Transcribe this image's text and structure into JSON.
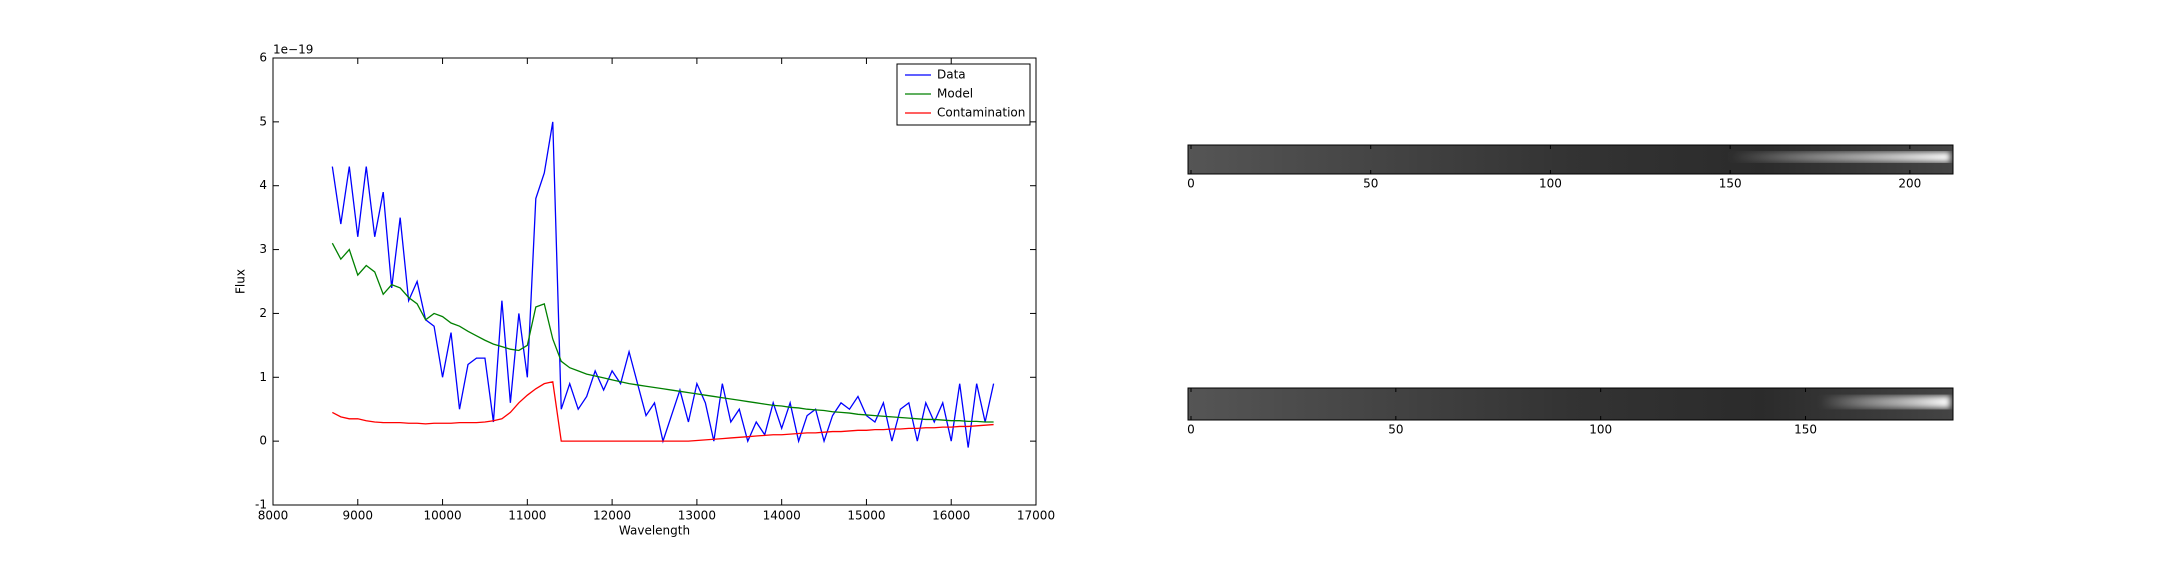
{
  "chart_data": {
    "type": "line",
    "xlabel": "Wavelength",
    "ylabel": "Flux",
    "y_offset_label": "1e−19",
    "x": [
      8700,
      8800,
      8900,
      9000,
      9100,
      9200,
      9300,
      9400,
      9500,
      9600,
      9700,
      9800,
      9900,
      10000,
      10100,
      10200,
      10300,
      10400,
      10500,
      10600,
      10700,
      10800,
      10900,
      11000,
      11100,
      11200,
      11300,
      11400,
      11500,
      11600,
      11700,
      11800,
      11900,
      12000,
      12100,
      12200,
      12300,
      12400,
      12500,
      12600,
      12700,
      12800,
      12900,
      13000,
      13100,
      13200,
      13300,
      13400,
      13500,
      13600,
      13700,
      13800,
      13900,
      14000,
      14100,
      14200,
      14300,
      14400,
      14500,
      14600,
      14700,
      14800,
      14900,
      15000,
      15100,
      15200,
      15300,
      15400,
      15500,
      15600,
      15700,
      15800,
      15900,
      16000,
      16100,
      16200,
      16300,
      16400,
      16500
    ],
    "series": [
      {
        "name": "Data",
        "color": "#0000ff",
        "values": [
          4.3,
          3.4,
          4.3,
          3.2,
          4.3,
          3.2,
          3.9,
          2.4,
          3.5,
          2.2,
          2.5,
          1.9,
          1.8,
          1.0,
          1.7,
          0.5,
          1.2,
          1.3,
          1.3,
          0.3,
          2.2,
          0.6,
          2.0,
          1.0,
          3.8,
          4.2,
          5.0,
          0.5,
          0.9,
          0.5,
          0.7,
          1.1,
          0.8,
          1.1,
          0.9,
          1.4,
          0.9,
          0.4,
          0.6,
          0.0,
          0.4,
          0.8,
          0.3,
          0.9,
          0.6,
          0.0,
          0.9,
          0.3,
          0.5,
          0.0,
          0.3,
          0.1,
          0.6,
          0.2,
          0.6,
          0.0,
          0.4,
          0.5,
          0.0,
          0.4,
          0.6,
          0.5,
          0.7,
          0.4,
          0.3,
          0.6,
          0.0,
          0.5,
          0.6,
          0.0,
          0.6,
          0.3,
          0.6,
          0.0,
          0.9,
          -0.1,
          0.9,
          0.3,
          0.9
        ]
      },
      {
        "name": "Model",
        "color": "#008000",
        "values": [
          3.1,
          2.85,
          3.0,
          2.6,
          2.75,
          2.65,
          2.3,
          2.45,
          2.4,
          2.25,
          2.15,
          1.9,
          2.0,
          1.95,
          1.85,
          1.8,
          1.72,
          1.65,
          1.58,
          1.52,
          1.48,
          1.44,
          1.42,
          1.5,
          2.1,
          2.15,
          1.6,
          1.25,
          1.15,
          1.1,
          1.05,
          1.02,
          0.99,
          0.96,
          0.93,
          0.9,
          0.88,
          0.86,
          0.84,
          0.82,
          0.8,
          0.78,
          0.76,
          0.74,
          0.72,
          0.7,
          0.68,
          0.66,
          0.64,
          0.62,
          0.6,
          0.58,
          0.56,
          0.55,
          0.53,
          0.52,
          0.5,
          0.49,
          0.48,
          0.46,
          0.45,
          0.44,
          0.42,
          0.41,
          0.4,
          0.39,
          0.38,
          0.37,
          0.36,
          0.35,
          0.34,
          0.34,
          0.33,
          0.32,
          0.32,
          0.31,
          0.31,
          0.3,
          0.3
        ]
      },
      {
        "name": "Contamination",
        "color": "#ff0000",
        "values": [
          0.45,
          0.38,
          0.35,
          0.35,
          0.32,
          0.3,
          0.29,
          0.29,
          0.29,
          0.28,
          0.28,
          0.27,
          0.28,
          0.28,
          0.28,
          0.29,
          0.29,
          0.29,
          0.3,
          0.32,
          0.35,
          0.45,
          0.6,
          0.72,
          0.82,
          0.9,
          0.93,
          0,
          0,
          0,
          0,
          0,
          0,
          0,
          0,
          0,
          0,
          0,
          0,
          0,
          0,
          0,
          0,
          0.01,
          0.02,
          0.03,
          0.04,
          0.05,
          0.06,
          0.07,
          0.08,
          0.09,
          0.1,
          0.1,
          0.11,
          0.12,
          0.13,
          0.13,
          0.14,
          0.15,
          0.15,
          0.16,
          0.17,
          0.17,
          0.18,
          0.18,
          0.19,
          0.19,
          0.2,
          0.2,
          0.21,
          0.21,
          0.22,
          0.22,
          0.23,
          0.23,
          0.24,
          0.25,
          0.26
        ]
      }
    ],
    "xlim": [
      8000,
      17000
    ],
    "xticks": [
      8000,
      9000,
      10000,
      11000,
      12000,
      13000,
      14000,
      15000,
      16000,
      17000
    ],
    "ylim": [
      -1,
      6
    ],
    "yticks": [
      -1,
      0,
      1,
      2,
      3,
      4,
      5,
      6
    ],
    "grid": false,
    "legend": "upper right"
  },
  "images": [
    {
      "xlim": [
        0,
        212
      ],
      "xticks": [
        0,
        50,
        100,
        150,
        200
      ]
    },
    {
      "xlim": [
        0,
        186
      ],
      "xticks": [
        0,
        50,
        100,
        150
      ]
    }
  ]
}
